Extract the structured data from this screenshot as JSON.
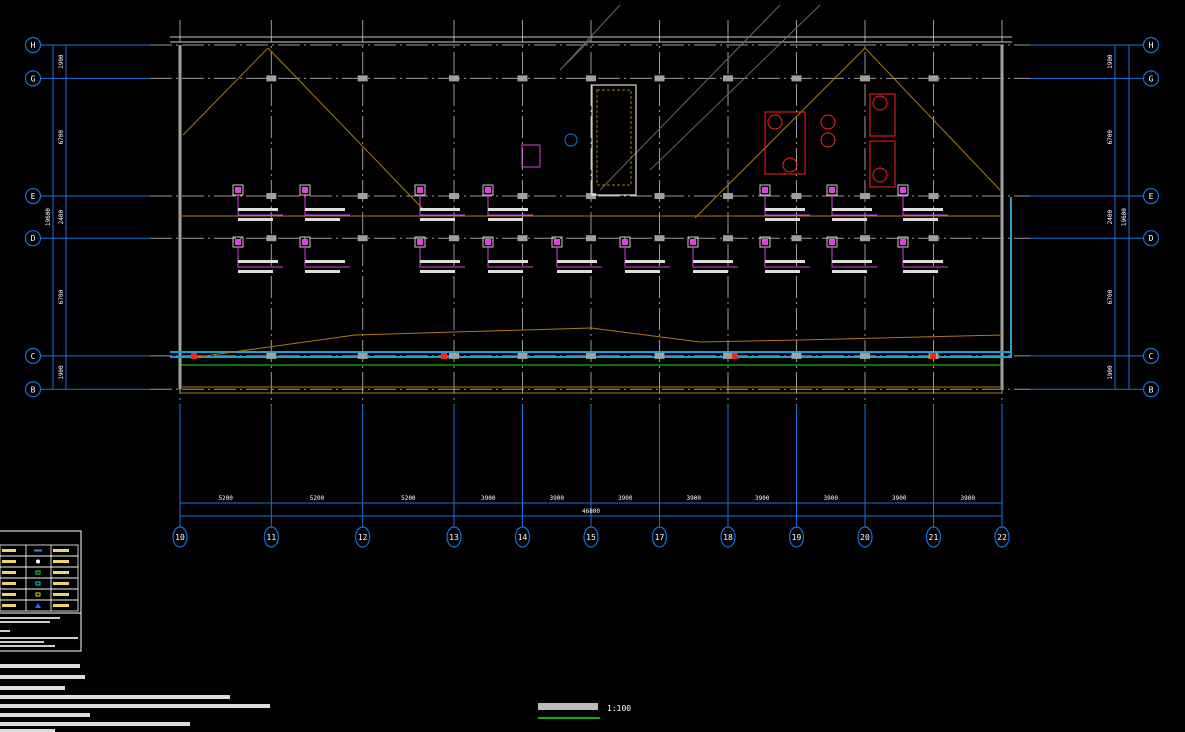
{
  "drawing": {
    "scale_label": "1:100",
    "background": "#000000",
    "colors": {
      "axis": "#1a6fe0",
      "grid": "#9a9a9a",
      "wall": "#a0a0a0",
      "equipment": "#ff2020",
      "box": "#e040e0",
      "pipe": "#20a0d0",
      "ground": "#20e020",
      "diagonal": "#b07810",
      "text": "#ffffff"
    }
  },
  "column_axes": {
    "labels": [
      "10",
      "11",
      "12",
      "13",
      "14",
      "15",
      "17",
      "18",
      "19",
      "20",
      "21",
      "22"
    ],
    "spacings": [
      "5200",
      "5200",
      "5200",
      "3900",
      "3900",
      "3900",
      "3900",
      "3900",
      "3900",
      "3900",
      "3900"
    ],
    "spacing_values": [
      5200,
      5200,
      5200,
      3900,
      3900,
      3900,
      3900,
      3900,
      3900,
      3900,
      3900
    ],
    "total": "46800"
  },
  "row_axes": {
    "labels": [
      "H",
      "G",
      "E",
      "D",
      "C",
      "B"
    ],
    "spacings": [
      "1900",
      "6700",
      "2400",
      "6700",
      "1900"
    ],
    "spacing_values": [
      1900,
      6700,
      2400,
      6700,
      1900
    ],
    "total": "19600"
  },
  "legend": {
    "symbols": [
      {
        "icon": "dash-line-icon",
        "color": "#4a8ad0"
      },
      {
        "icon": "dot-icon",
        "color": "#ffffff"
      },
      {
        "icon": "square-icon",
        "color": "#20e020"
      },
      {
        "icon": "square-icon",
        "color": "#20d0d0"
      },
      {
        "icon": "square-icon",
        "color": "#e0e020"
      },
      {
        "icon": "triangle-icon",
        "color": "#2070ff"
      }
    ]
  }
}
